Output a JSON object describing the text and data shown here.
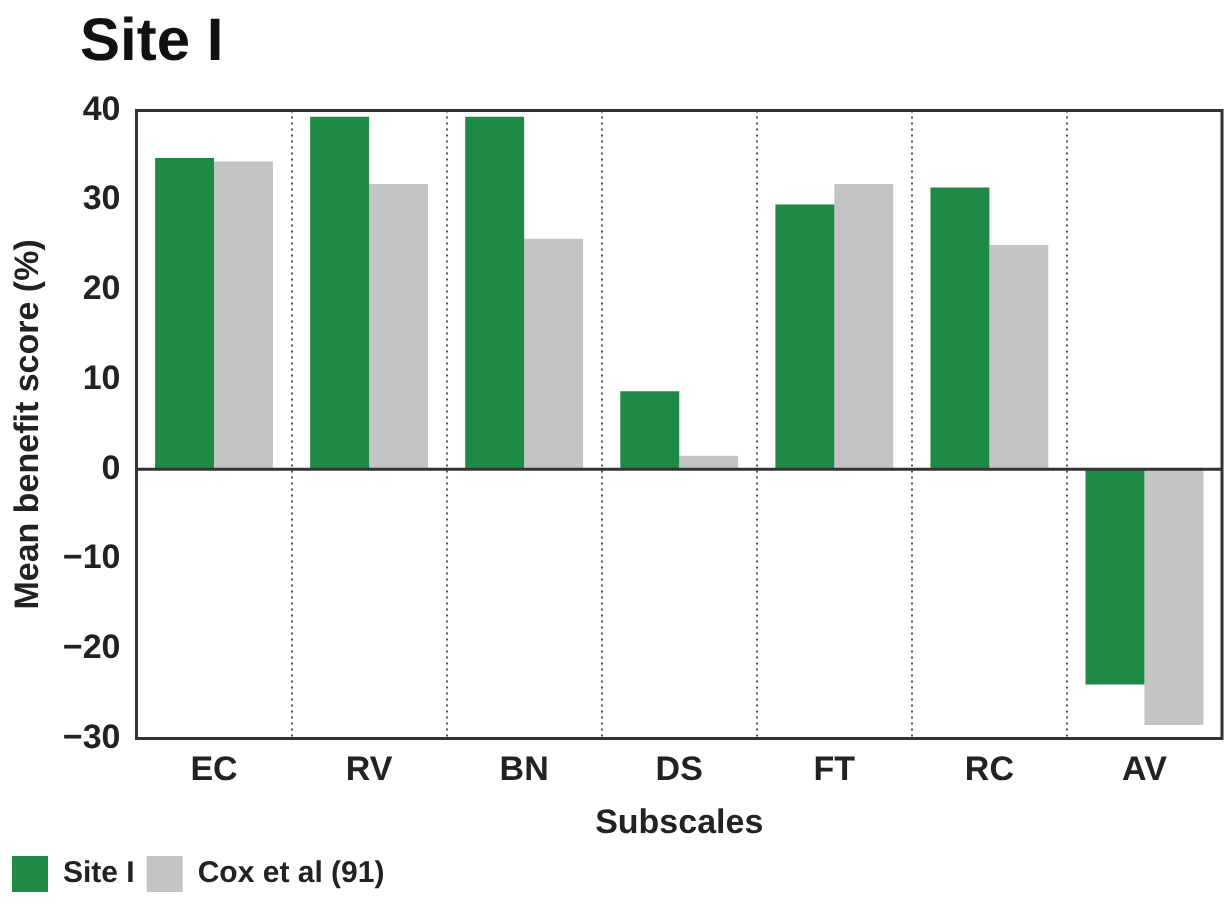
{
  "chart_data": {
    "type": "bar",
    "title": "Site I",
    "xlabel": "Subscales",
    "ylabel": "Mean benefit score (%)",
    "categories": [
      "EC",
      "RV",
      "BN",
      "DS",
      "FT",
      "RC",
      "AV"
    ],
    "series": [
      {
        "name": "Site I",
        "color": "#1f8a45",
        "values": [
          34.7,
          39.3,
          39.3,
          8.7,
          29.5,
          31.4,
          -24.0
        ]
      },
      {
        "name": "Cox et al (91)",
        "color": "#c4c4c4",
        "values": [
          34.3,
          31.8,
          25.7,
          1.5,
          31.8,
          25.0,
          -28.5
        ]
      }
    ],
    "ylim": [
      -30,
      40
    ],
    "yticks": [
      -30,
      -20,
      -10,
      0,
      10,
      20,
      30,
      40
    ],
    "grid": "x",
    "legend": "bottom left"
  }
}
